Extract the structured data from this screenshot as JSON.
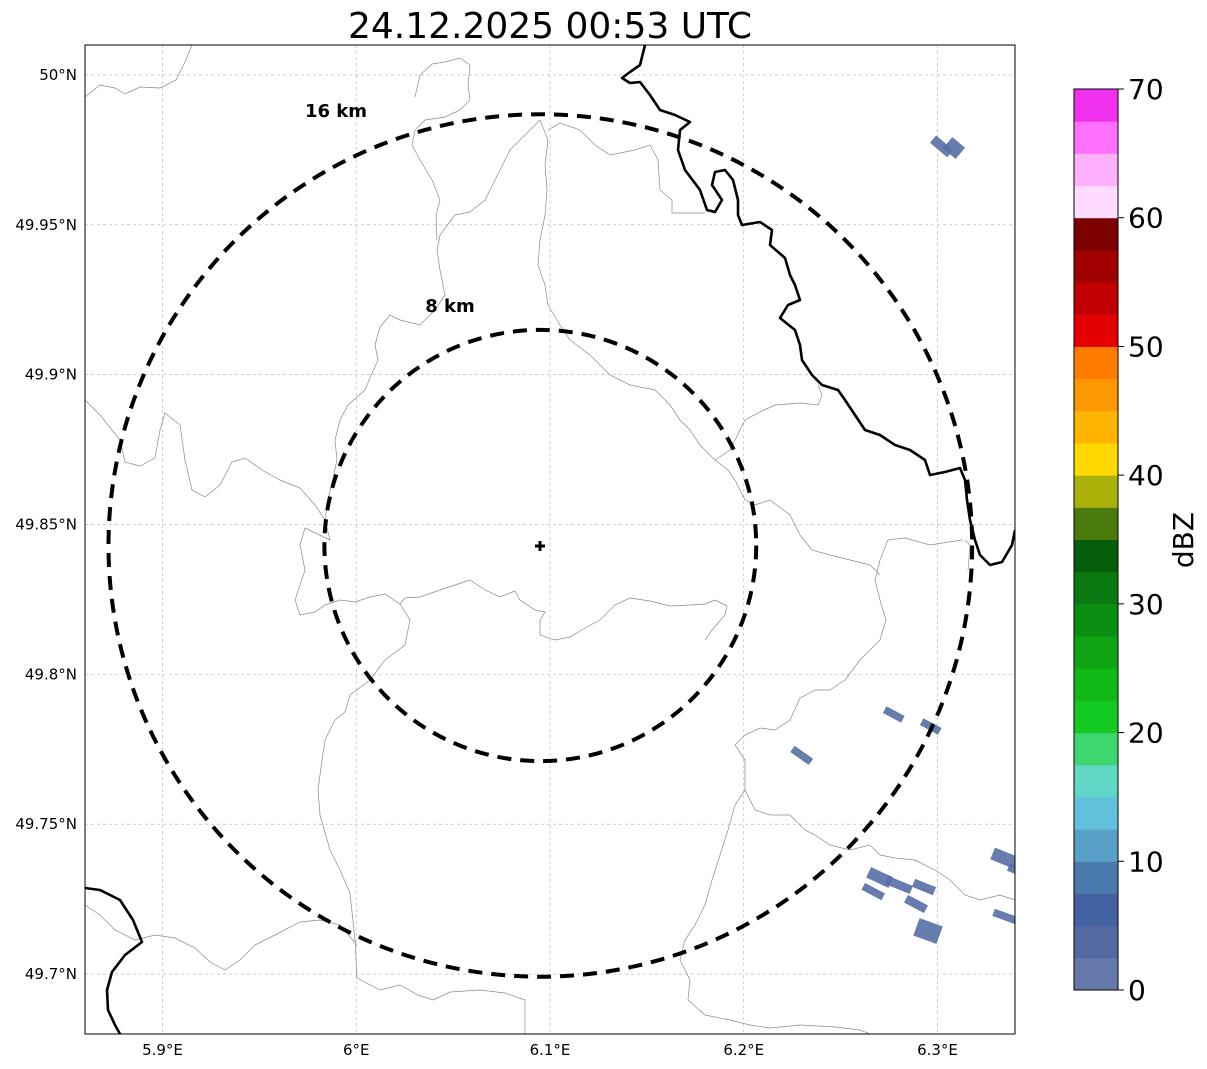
{
  "title": "24.12.2025 00:53 UTC",
  "map": {
    "lon_range": [
      5.86,
      6.34
    ],
    "lat_range": [
      49.68,
      50.01
    ],
    "grid": true,
    "lon_ticks": [
      {
        "value": 5.9,
        "label": "5.9°E"
      },
      {
        "value": 6.0,
        "label": "6°E"
      },
      {
        "value": 6.1,
        "label": "6.1°E"
      },
      {
        "value": 6.2,
        "label": "6.2°E"
      },
      {
        "value": 6.3,
        "label": "6.3°E"
      }
    ],
    "lat_ticks": [
      {
        "value": 50.0,
        "label": "50°N"
      },
      {
        "value": 49.95,
        "label": "49.95°N"
      },
      {
        "value": 49.9,
        "label": "49.9°N"
      },
      {
        "value": 49.85,
        "label": "49.85°N"
      },
      {
        "value": 49.8,
        "label": "49.8°N"
      },
      {
        "value": 49.75,
        "label": "49.75°N"
      },
      {
        "value": 49.7,
        "label": "49.7°N"
      }
    ],
    "radar_site": {
      "lon": 6.095,
      "lat": 49.843,
      "marker": "plus-icon"
    },
    "range_rings": [
      {
        "radius_km": 8,
        "label": "8 km"
      },
      {
        "radius_km": 16,
        "label": "16 km"
      }
    ],
    "ring_style": "dashed black"
  },
  "colorbar": {
    "label": "dBZ",
    "min": 0,
    "max": 70,
    "step": 2.5,
    "tick_labels": [
      "0",
      "10",
      "20",
      "30",
      "40",
      "50",
      "60",
      "70"
    ],
    "colors": [
      "#6478aa",
      "#5468a2",
      "#4462a0",
      "#4a7ab0",
      "#58a0c8",
      "#62c0dc",
      "#60d6c4",
      "#3ed66e",
      "#12ca22",
      "#10b818",
      "#0ea414",
      "#0c8e12",
      "#0a7a10",
      "#065e0a",
      "#4a7a0a",
      "#aab20a",
      "#ffd800",
      "#ffb400",
      "#ff9800",
      "#ff7c00",
      "#e40000",
      "#c00000",
      "#a00000",
      "#7c0000",
      "#ffdcff",
      "#ffb0ff",
      "#ff70ff",
      "#f032f0"
    ]
  },
  "chart_data": {
    "type": "scatter",
    "title": "24.12.2025 00:53 UTC",
    "xlabel": "",
    "ylabel": "",
    "colorbar_label": "dBZ",
    "xlim": [
      5.86,
      6.34
    ],
    "ylim": [
      49.68,
      50.01
    ],
    "series": [
      {
        "values": [
          {
            "lon": 6.303,
            "lat": 49.976,
            "dbz": 2
          },
          {
            "lon": 6.31,
            "lat": 49.973,
            "dbz": 3
          },
          {
            "lon": 6.275,
            "lat": 49.786,
            "dbz": 1
          },
          {
            "lon": 6.296,
            "lat": 49.782,
            "dbz": 1
          },
          {
            "lon": 6.225,
            "lat": 49.773,
            "dbz": 1
          },
          {
            "lon": 6.265,
            "lat": 49.732,
            "dbz": 2
          },
          {
            "lon": 6.281,
            "lat": 49.729,
            "dbz": 1
          },
          {
            "lon": 6.297,
            "lat": 49.729,
            "dbz": 2
          },
          {
            "lon": 6.26,
            "lat": 49.727,
            "dbz": 1
          },
          {
            "lon": 6.29,
            "lat": 49.723,
            "dbz": 1
          },
          {
            "lon": 6.297,
            "lat": 49.714,
            "dbz": 3
          },
          {
            "lon": 6.331,
            "lat": 49.739,
            "dbz": 2
          },
          {
            "lon": 6.338,
            "lat": 49.734,
            "dbz": 1
          },
          {
            "lon": 6.332,
            "lat": 49.719,
            "dbz": 1
          }
        ]
      }
    ]
  }
}
